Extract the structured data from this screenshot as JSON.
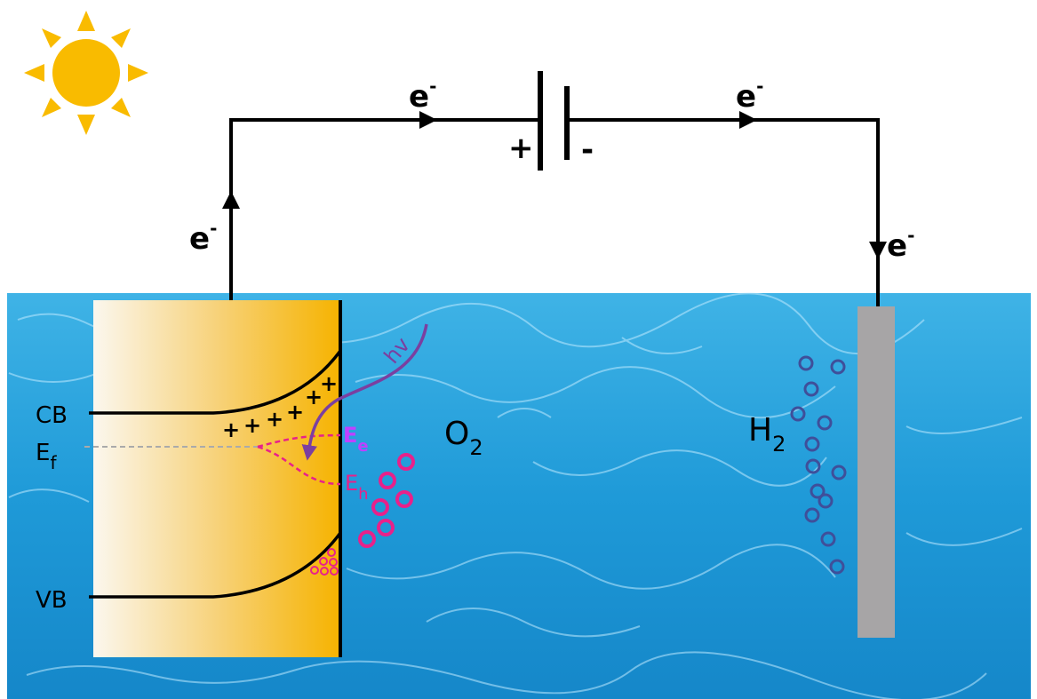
{
  "circuit": {
    "electron_labels": [
      {
        "base": "e",
        "sup": "-"
      },
      {
        "base": "e",
        "sup": "-"
      },
      {
        "base": "e",
        "sup": "-"
      },
      {
        "base": "e",
        "sup": "-"
      }
    ],
    "battery": {
      "positive": "+",
      "negative": "-"
    }
  },
  "band_diagram": {
    "cb": "CB",
    "ef": {
      "base": "E",
      "sub": "f"
    },
    "vb": "VB",
    "photon": "hv",
    "electron_level": {
      "base": "E",
      "sub": "e"
    },
    "hole_level": {
      "base": "E",
      "sub": "h"
    },
    "charges": [
      "+",
      "+",
      "+",
      "+",
      "+",
      "+"
    ]
  },
  "products": {
    "anode": {
      "base": "O",
      "sub": "2"
    },
    "cathode": {
      "base": "H",
      "sub": "2"
    }
  }
}
